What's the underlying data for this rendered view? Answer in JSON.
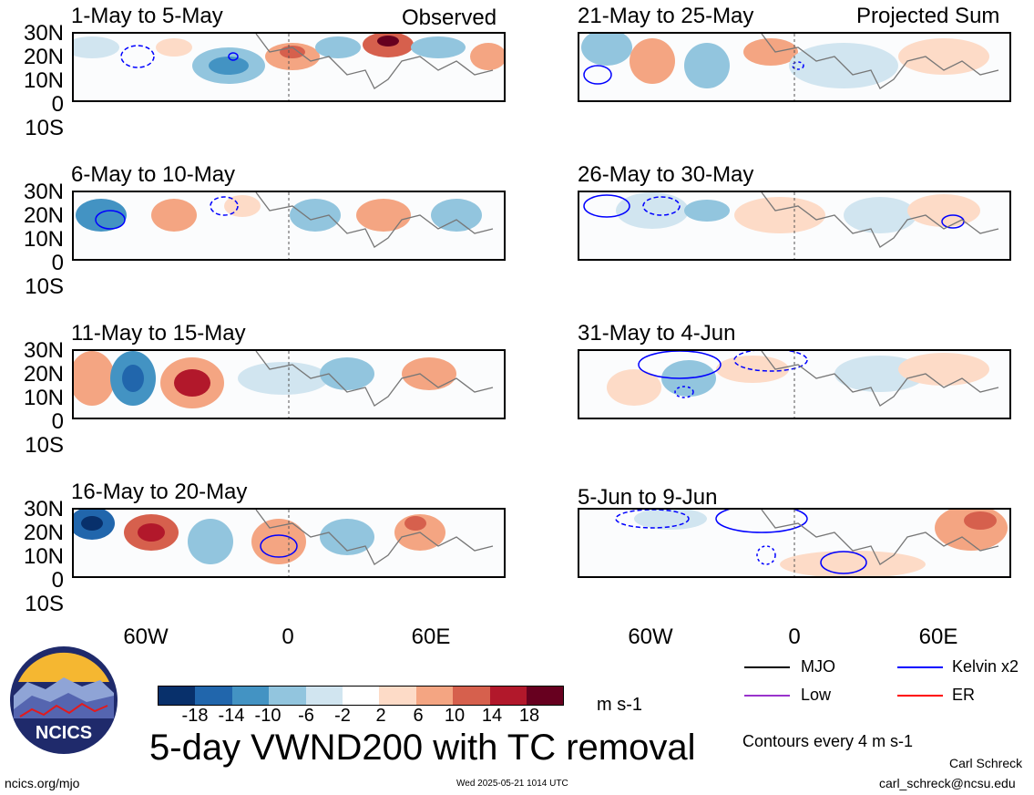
{
  "labels": {
    "observed": "Observed",
    "projected": "Projected Sum",
    "lat_ticks": [
      "30N",
      "20N",
      "10N",
      "0",
      "10S"
    ],
    "lon_ticks": [
      "60W",
      "0",
      "60E"
    ],
    "units": "m s-1",
    "main_title": "5-day VWND200 with TC removal",
    "contour_note": "Contours every 4 m s-1",
    "author": "Carl Schreck",
    "email": "carl_schreck@ncsu.edu",
    "url": "ncics.org/mjo",
    "timestamp": "Wed 2025-05-21 1014 UTC",
    "logo_text": "NCICS"
  },
  "panels_left": [
    {
      "title": "1-May to 5-May"
    },
    {
      "title": "6-May to 10-May"
    },
    {
      "title": "11-May to 15-May"
    },
    {
      "title": "16-May to 20-May"
    }
  ],
  "panels_right": [
    {
      "title": "21-May to 25-May"
    },
    {
      "title": "26-May to 30-May"
    },
    {
      "title": "31-May to 4-Jun"
    },
    {
      "title": "5-Jun to 9-Jun"
    }
  ],
  "colorbar": {
    "ticks": [
      "-18",
      "-14",
      "-10",
      "-6",
      "-2",
      "2",
      "6",
      "10",
      "14",
      "18"
    ],
    "colors": [
      "#08306b",
      "#2166ac",
      "#4393c3",
      "#92c5de",
      "#d1e5f0",
      "#ffffff",
      "#fddbc7",
      "#f4a582",
      "#d6604d",
      "#b2182b",
      "#67001f"
    ]
  },
  "legend": [
    {
      "name": "MJO",
      "color": "#000000"
    },
    {
      "name": "Kelvin x2",
      "color": "#0000ff"
    },
    {
      "name": "Low",
      "color": "#9933cc"
    },
    {
      "name": "ER",
      "color": "#ff0000"
    }
  ]
}
